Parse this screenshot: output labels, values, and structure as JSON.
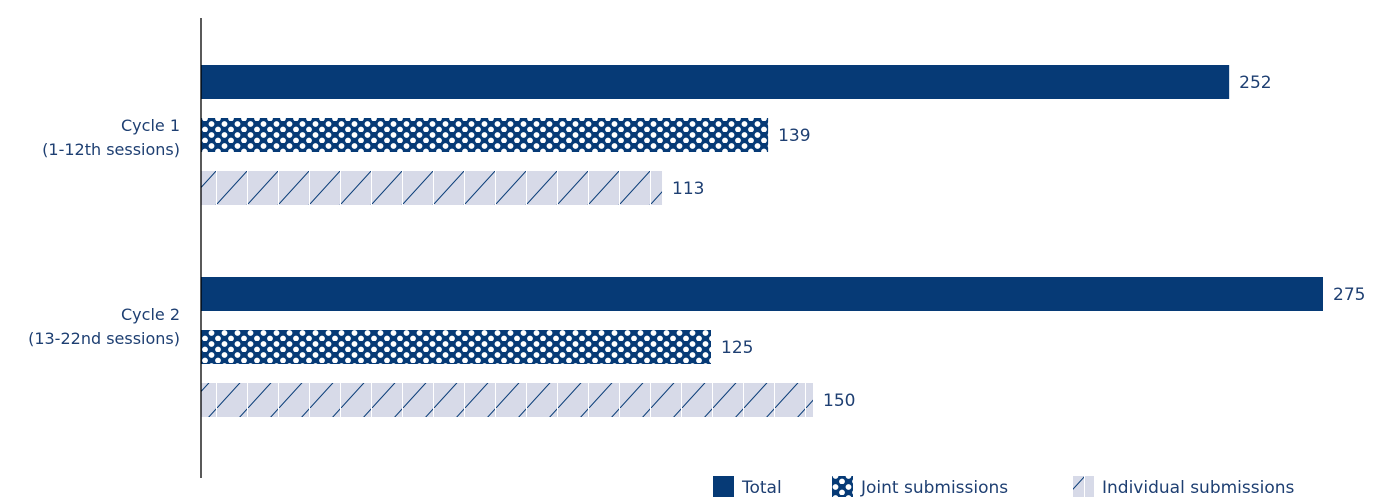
{
  "chart_data": {
    "type": "bar",
    "orientation": "horizontal",
    "categories": [
      [
        "Cycle 1",
        "(1-12th sessions)"
      ],
      [
        "Cycle 2",
        "(13-22nd sessions)"
      ]
    ],
    "series": [
      {
        "name": "Total",
        "values": [
          252,
          275
        ],
        "pattern": "solid"
      },
      {
        "name": "Joint submissions",
        "values": [
          139,
          125
        ],
        "pattern": "dots"
      },
      {
        "name": "Individual submissions",
        "values": [
          113,
          150
        ],
        "pattern": "hatch"
      }
    ],
    "xlim": [
      0,
      275
    ],
    "grid": false,
    "legend_position": "bottom-right",
    "colors": {
      "primary": "#063a76",
      "hatch_fill": "#d7dae8",
      "hatch_line": "#063a76",
      "text": "#1e3f72"
    }
  }
}
